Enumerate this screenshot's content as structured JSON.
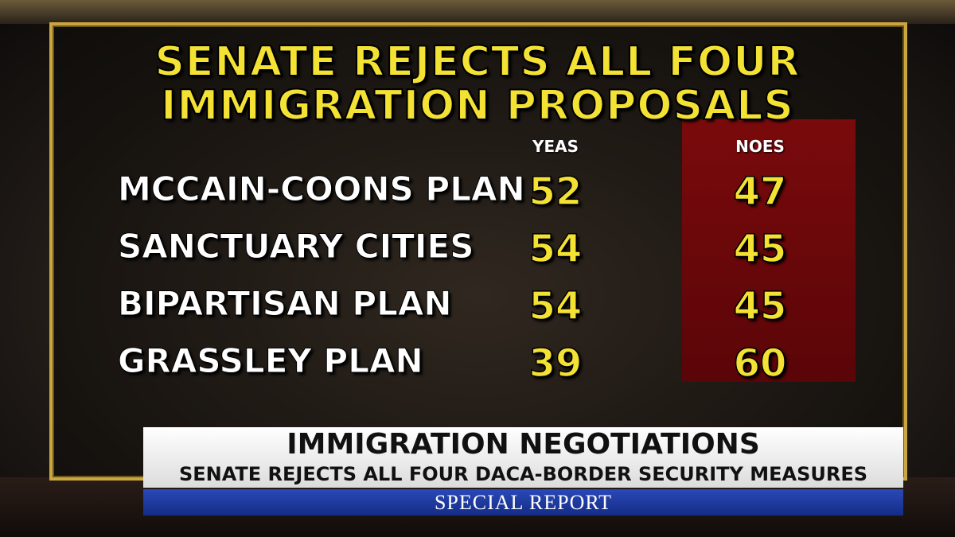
{
  "graphic": {
    "title": [
      "SENATE REJECTS ALL FOUR",
      "IMMIGRATION PROPOSALS"
    ],
    "table": {
      "columns": [
        "YEAS",
        "NOES"
      ],
      "rows": [
        {
          "label": "MCCAIN-COONS PLAN",
          "yeas": 52,
          "noes": 47
        },
        {
          "label": "SANCTUARY CITIES",
          "yeas": 54,
          "noes": 45
        },
        {
          "label": "BIPARTISAN PLAN",
          "yeas": 54,
          "noes": 45
        },
        {
          "label": "GRASSLEY PLAN",
          "yeas": 39,
          "noes": 60
        }
      ]
    }
  },
  "lower_third": {
    "headline": "IMMIGRATION NEGOTIATIONS",
    "subheadline": "SENATE REJECTS ALL FOUR DACA-BORDER SECURITY MEASURES",
    "show": "SPECIAL REPORT"
  }
}
